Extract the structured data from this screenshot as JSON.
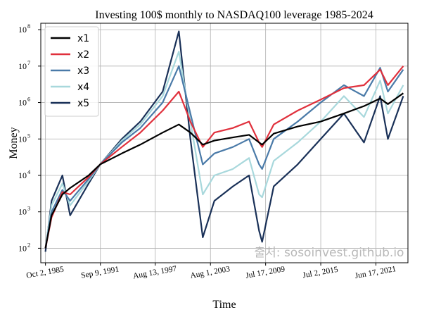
{
  "chart_data": {
    "type": "line",
    "title": "Investing 100$ monthly to NASDAQ100 leverage 1985-2024",
    "xlabel": "Time",
    "ylabel": "Money",
    "yscale": "log",
    "ylim": [
      40,
      150000000
    ],
    "xlim": [
      "1985-04-01",
      "2024-12-01"
    ],
    "grid": true,
    "legend_position": "top-left",
    "watermark": "출처: sosoinvest.github.io",
    "x_ticks": [
      {
        "date": "1985-10-02",
        "label": "Oct 2, 1985"
      },
      {
        "date": "1991-09-09",
        "label": "Sep 9, 1991"
      },
      {
        "date": "1997-08-13",
        "label": "Aug 13, 1997"
      },
      {
        "date": "2003-08-01",
        "label": "Aug 1, 2003"
      },
      {
        "date": "2009-07-17",
        "label": "Jul 17, 2009"
      },
      {
        "date": "2015-07-02",
        "label": "Jul 2, 2015"
      },
      {
        "date": "2021-06-17",
        "label": "Jun 17, 2021"
      }
    ],
    "y_ticks": [
      {
        "value": 100,
        "base": "10",
        "exp": "2"
      },
      {
        "value": 1000,
        "base": "10",
        "exp": "3"
      },
      {
        "value": 10000,
        "base": "10",
        "exp": "4"
      },
      {
        "value": 100000,
        "base": "10",
        "exp": "5"
      },
      {
        "value": 1000000,
        "base": "10",
        "exp": "6"
      },
      {
        "value": 10000000,
        "base": "10",
        "exp": "7"
      },
      {
        "value": 100000000,
        "base": "10",
        "exp": "8"
      }
    ],
    "series": [
      {
        "name": "x1",
        "color": "#000000",
        "points": [
          [
            "1985-10-01",
            100
          ],
          [
            "1986-06-01",
            800
          ],
          [
            "1987-08-01",
            3000
          ],
          [
            "1988-06-01",
            4500
          ],
          [
            "1990-06-01",
            10000
          ],
          [
            "1991-09-01",
            20000
          ],
          [
            "1994-01-01",
            40000
          ],
          [
            "1996-01-01",
            70000
          ],
          [
            "1998-06-01",
            150000
          ],
          [
            "2000-03-01",
            250000
          ],
          [
            "2001-06-01",
            150000
          ],
          [
            "2002-10-01",
            70000
          ],
          [
            "2004-01-01",
            90000
          ],
          [
            "2006-01-01",
            110000
          ],
          [
            "2007-10-01",
            130000
          ],
          [
            "2008-11-01",
            80000
          ],
          [
            "2009-03-01",
            70000
          ],
          [
            "2010-06-01",
            140000
          ],
          [
            "2013-01-01",
            220000
          ],
          [
            "2015-07-01",
            300000
          ],
          [
            "2018-01-01",
            500000
          ],
          [
            "2020-03-01",
            800000
          ],
          [
            "2021-12-01",
            1300000
          ],
          [
            "2022-10-01",
            900000
          ],
          [
            "2024-06-01",
            1800000
          ]
        ]
      },
      {
        "name": "x2",
        "color": "#e0303c",
        "points": [
          [
            "1985-10-01",
            100
          ],
          [
            "1986-06-01",
            700
          ],
          [
            "1987-08-01",
            3500
          ],
          [
            "1988-06-01",
            3000
          ],
          [
            "1990-06-01",
            9000
          ],
          [
            "1991-09-01",
            20000
          ],
          [
            "1994-01-01",
            60000
          ],
          [
            "1996-01-01",
            150000
          ],
          [
            "1998-06-01",
            600000
          ],
          [
            "2000-03-01",
            2000000
          ],
          [
            "2001-06-01",
            300000
          ],
          [
            "2002-10-01",
            60000
          ],
          [
            "2004-01-01",
            150000
          ],
          [
            "2006-01-01",
            200000
          ],
          [
            "2007-10-01",
            300000
          ],
          [
            "2008-11-01",
            80000
          ],
          [
            "2009-03-01",
            60000
          ],
          [
            "2010-06-01",
            250000
          ],
          [
            "2013-01-01",
            600000
          ],
          [
            "2015-07-01",
            1200000
          ],
          [
            "2018-01-01",
            2500000
          ],
          [
            "2020-03-01",
            3000000
          ],
          [
            "2021-12-01",
            8000000
          ],
          [
            "2022-10-01",
            3000000
          ],
          [
            "2024-06-01",
            10000000
          ]
        ]
      },
      {
        "name": "x3",
        "color": "#4a7aa8",
        "points": [
          [
            "1985-10-01",
            100
          ],
          [
            "1986-06-01",
            1000
          ],
          [
            "1987-08-01",
            4000
          ],
          [
            "1988-06-01",
            2000
          ],
          [
            "1990-06-01",
            8000
          ],
          [
            "1991-09-01",
            20000
          ],
          [
            "1994-01-01",
            80000
          ],
          [
            "1996-01-01",
            200000
          ],
          [
            "1998-06-01",
            1000000
          ],
          [
            "2000-03-01",
            10000000
          ],
          [
            "2001-06-01",
            500000
          ],
          [
            "2002-10-01",
            20000
          ],
          [
            "2004-01-01",
            40000
          ],
          [
            "2006-01-01",
            60000
          ],
          [
            "2007-10-01",
            100000
          ],
          [
            "2008-11-01",
            20000
          ],
          [
            "2009-03-01",
            15000
          ],
          [
            "2010-06-01",
            100000
          ],
          [
            "2013-01-01",
            300000
          ],
          [
            "2015-07-01",
            1000000
          ],
          [
            "2018-01-01",
            3000000
          ],
          [
            "2020-03-01",
            1500000
          ],
          [
            "2021-12-01",
            9000000
          ],
          [
            "2022-10-01",
            2000000
          ],
          [
            "2024-06-01",
            8000000
          ]
        ]
      },
      {
        "name": "x4",
        "color": "#a8d8dc",
        "points": [
          [
            "1985-10-01",
            100
          ],
          [
            "1986-06-01",
            1500
          ],
          [
            "1987-08-01",
            6000
          ],
          [
            "1988-06-01",
            1500
          ],
          [
            "1990-06-01",
            7000
          ],
          [
            "1991-09-01",
            20000
          ],
          [
            "1994-01-01",
            90000
          ],
          [
            "1996-01-01",
            250000
          ],
          [
            "1998-06-01",
            1500000
          ],
          [
            "2000-03-01",
            25000000
          ],
          [
            "2001-06-01",
            300000
          ],
          [
            "2002-10-01",
            3000
          ],
          [
            "2004-01-01",
            10000
          ],
          [
            "2006-01-01",
            15000
          ],
          [
            "2007-10-01",
            30000
          ],
          [
            "2008-11-01",
            3000
          ],
          [
            "2009-03-01",
            2500
          ],
          [
            "2010-06-01",
            25000
          ],
          [
            "2013-01-01",
            80000
          ],
          [
            "2015-07-01",
            300000
          ],
          [
            "2018-01-01",
            1500000
          ],
          [
            "2020-03-01",
            400000
          ],
          [
            "2021-12-01",
            4000000
          ],
          [
            "2022-10-01",
            500000
          ],
          [
            "2024-06-01",
            3000000
          ]
        ]
      },
      {
        "name": "x5",
        "color": "#1a3158",
        "points": [
          [
            "1985-10-01",
            80
          ],
          [
            "1986-06-01",
            2000
          ],
          [
            "1987-08-01",
            10000
          ],
          [
            "1988-06-01",
            800
          ],
          [
            "1990-06-01",
            6000
          ],
          [
            "1991-09-01",
            20000
          ],
          [
            "1994-01-01",
            100000
          ],
          [
            "1996-01-01",
            300000
          ],
          [
            "1998-06-01",
            2000000
          ],
          [
            "2000-03-01",
            90000000
          ],
          [
            "2001-06-01",
            100000
          ],
          [
            "2002-10-01",
            200
          ],
          [
            "2004-01-01",
            2000
          ],
          [
            "2006-01-01",
            5000
          ],
          [
            "2007-10-01",
            10000
          ],
          [
            "2008-11-01",
            300
          ],
          [
            "2009-03-01",
            150
          ],
          [
            "2010-06-01",
            5000
          ],
          [
            "2013-01-01",
            20000
          ],
          [
            "2015-07-01",
            100000
          ],
          [
            "2018-01-01",
            500000
          ],
          [
            "2020-03-01",
            80000
          ],
          [
            "2021-12-01",
            1500000
          ],
          [
            "2022-10-01",
            100000
          ],
          [
            "2024-06-01",
            1500000
          ]
        ]
      }
    ]
  }
}
